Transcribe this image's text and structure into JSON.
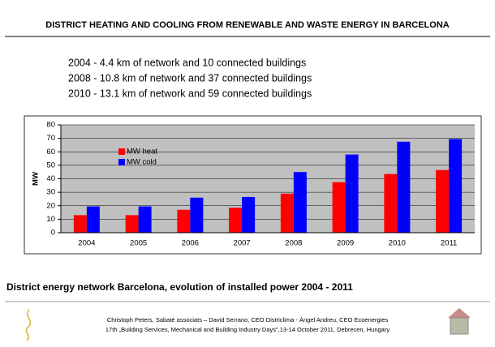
{
  "title": "DISTRICT HEATING AND COOLING FROM RENEWABLE AND WASTE ENERGY IN BARCELONA",
  "lines": [
    "2004 -   4.4 km of network and 10 connected buildings",
    "2008 - 10.8 km of network and 37 connected buildings",
    "2010 - 13.1 km of network and 59 connected buildings"
  ],
  "chart_data": {
    "type": "bar",
    "ylabel": "MW",
    "categories": [
      "2004",
      "2005",
      "2006",
      "2007",
      "2008",
      "2009",
      "2010",
      "2011"
    ],
    "series": [
      {
        "name": "MW heat",
        "color": "#ff0000",
        "values": [
          13,
          13,
          17,
          18.5,
          29,
          37.5,
          43.5,
          46.5
        ]
      },
      {
        "name": "MW cold",
        "color": "#0000ff",
        "values": [
          19.5,
          19.5,
          26,
          26.5,
          45,
          58,
          67.5,
          69.5
        ]
      }
    ],
    "ylim": [
      0,
      80
    ],
    "yticks": [
      0,
      10,
      20,
      30,
      40,
      50,
      60,
      70,
      80
    ],
    "grid": true,
    "plot_color": "#c0c0c0"
  },
  "caption": "District energy network Barcelona, evolution of installed power 2004 - 2011",
  "footer": [
    "Christoph Peters, Sabaté associats – David Serrano, CEO Districlima - Àngel Andreu, CEO Ecoenergies",
    "17th „Building Services, Mechanical and Building Industry Days\",13-14 October 2011, Debrecen, Hungary"
  ]
}
